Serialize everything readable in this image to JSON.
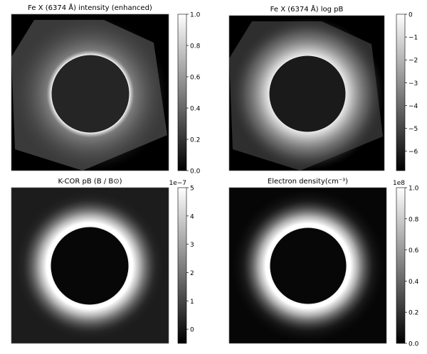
{
  "chart_data": [
    {
      "type": "heatmap",
      "title": "Fe X (6374 Å) intensity (enhanced)",
      "colormap": "gray",
      "colorbar": {
        "range": [
          0,
          1.0
        ],
        "ticks": [
          0,
          0.2,
          0.4,
          0.6,
          0.8,
          1.0
        ],
        "tick_labels": [
          "0.0",
          "0.2",
          "0.4",
          "0.6",
          "0.8",
          "1.0"
        ],
        "offset_label": ""
      }
    },
    {
      "type": "heatmap",
      "title": "Fe X (6374 Å) log pB",
      "colormap": "gray",
      "colorbar": {
        "range": [
          -6.85,
          0
        ],
        "ticks": [
          -6,
          -5,
          -4,
          -3,
          -2,
          -1,
          0
        ],
        "tick_labels": [
          "−6",
          "−5",
          "−4",
          "−3",
          "−2",
          "−1",
          "0"
        ],
        "offset_label": ""
      }
    },
    {
      "type": "heatmap",
      "title": "K-COR pB (B / B⊙)",
      "colormap": "gray",
      "colorbar": {
        "range": [
          -0.5,
          5
        ],
        "ticks": [
          0,
          1,
          2,
          3,
          4,
          5
        ],
        "tick_labels": [
          "0",
          "1",
          "2",
          "3",
          "4",
          "5"
        ],
        "offset_label": "1e−7"
      }
    },
    {
      "type": "heatmap",
      "title": "Electron density(cm⁻³)",
      "colormap": "gray",
      "colorbar": {
        "range": [
          0,
          1.0
        ],
        "ticks": [
          0,
          0.2,
          0.4,
          0.6,
          0.8,
          1.0
        ],
        "tick_labels": [
          "0.0",
          "0.2",
          "0.4",
          "0.6",
          "0.8",
          "1.0"
        ],
        "offset_label": "1e8"
      }
    }
  ]
}
